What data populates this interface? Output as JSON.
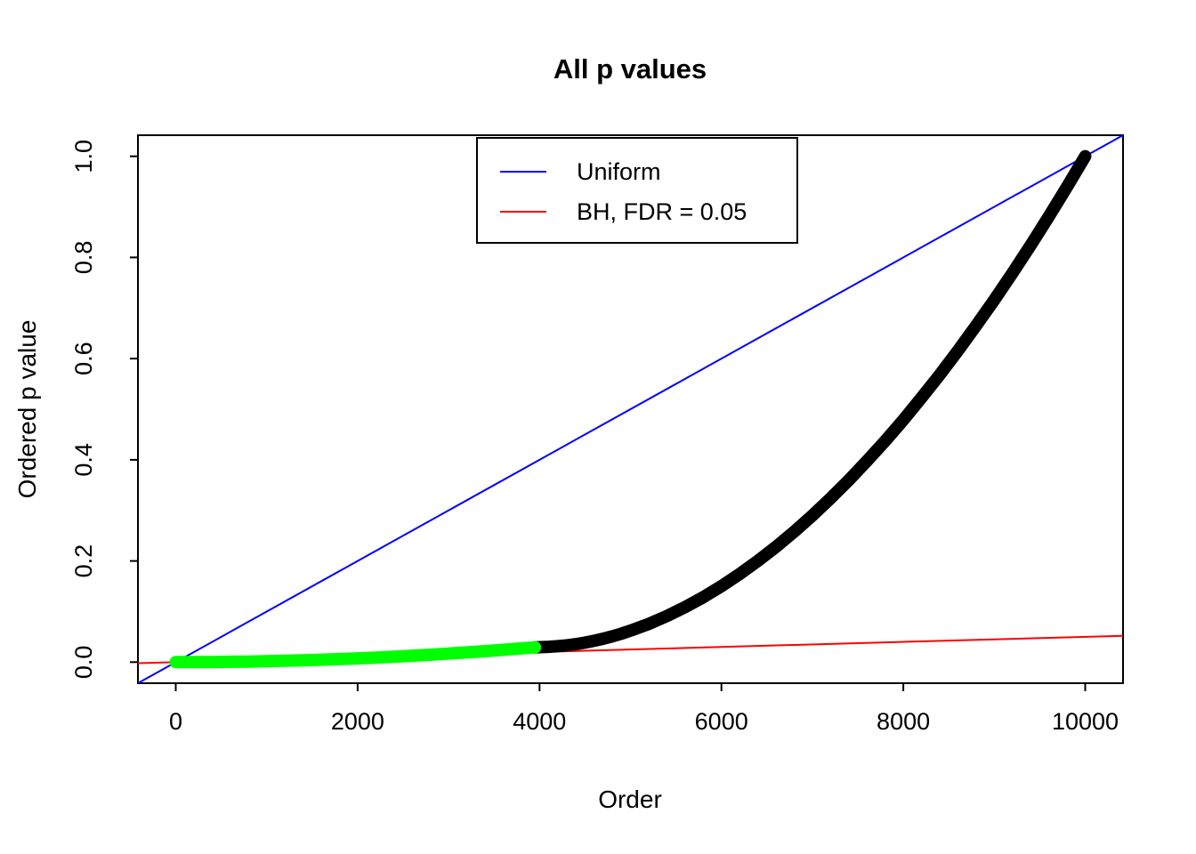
{
  "page": {
    "background": "#ffffff"
  },
  "chart_data": {
    "type": "scatter",
    "title": "All p values",
    "xlabel": "Order",
    "ylabel": "Ordered p value",
    "xlim": [
      -416,
      10416
    ],
    "ylim": [
      -0.0416,
      1.0416
    ],
    "x_ticks": [
      0,
      2000,
      4000,
      6000,
      8000,
      10000
    ],
    "y_ticks": [
      "0.0",
      "0.2",
      "0.4",
      "0.6",
      "0.8",
      "1.0"
    ],
    "grid": false,
    "box_color": "#000000",
    "legend": {
      "position": "top-center-inside",
      "entries": [
        {
          "label": "Uniform",
          "color": "#0000FF"
        },
        {
          "label": "BH, FDR = 0.05",
          "color": "#FF0000"
        }
      ]
    },
    "reference_lines": [
      {
        "name": "uniform",
        "color": "#0000FF",
        "slope": 0.0001,
        "intercept": 0
      },
      {
        "name": "bh-fdr-005",
        "color": "#FF0000",
        "slope": 5e-06,
        "intercept": 0
      }
    ],
    "series": [
      {
        "name": "nonsignificant-pvalues",
        "color": "#000000",
        "x": [
          3950,
          4100,
          4200,
          4300,
          4400,
          4500,
          4600,
          4700,
          4800,
          4900,
          5000,
          5200,
          5400,
          5600,
          5800,
          6000,
          6200,
          6400,
          6600,
          6800,
          7000,
          7200,
          7400,
          7600,
          7800,
          8000,
          8200,
          8400,
          8600,
          8800,
          9000,
          9200,
          9400,
          9600,
          9800,
          10000
        ],
        "y": [
          0.0292,
          0.0304,
          0.0316,
          0.0333,
          0.0356,
          0.0386,
          0.0422,
          0.0464,
          0.0511,
          0.0564,
          0.0623,
          0.0756,
          0.0911,
          0.1088,
          0.1285,
          0.1503,
          0.1742,
          0.2002,
          0.228,
          0.258,
          0.2899,
          0.3238,
          0.3597,
          0.3976,
          0.4372,
          0.4788,
          0.5226,
          0.5681,
          0.6155,
          0.665,
          0.716,
          0.769,
          0.824,
          0.8808,
          0.9395,
          1.0
        ]
      },
      {
        "name": "significant-pvalues",
        "color": "#00FF00",
        "x": [
          0,
          200,
          400,
          600,
          800,
          1000,
          1200,
          1400,
          1600,
          1800,
          2000,
          2200,
          2400,
          2600,
          2800,
          3000,
          3200,
          3400,
          3600,
          3800,
          3950
        ],
        "y": [
          0.0001,
          0.0001,
          0.0003,
          0.0007,
          0.0012,
          0.0019,
          0.0027,
          0.0037,
          0.0048,
          0.0061,
          0.0075,
          0.0091,
          0.0108,
          0.0127,
          0.0147,
          0.0169,
          0.0192,
          0.0217,
          0.0243,
          0.0271,
          0.0292
        ]
      }
    ]
  }
}
